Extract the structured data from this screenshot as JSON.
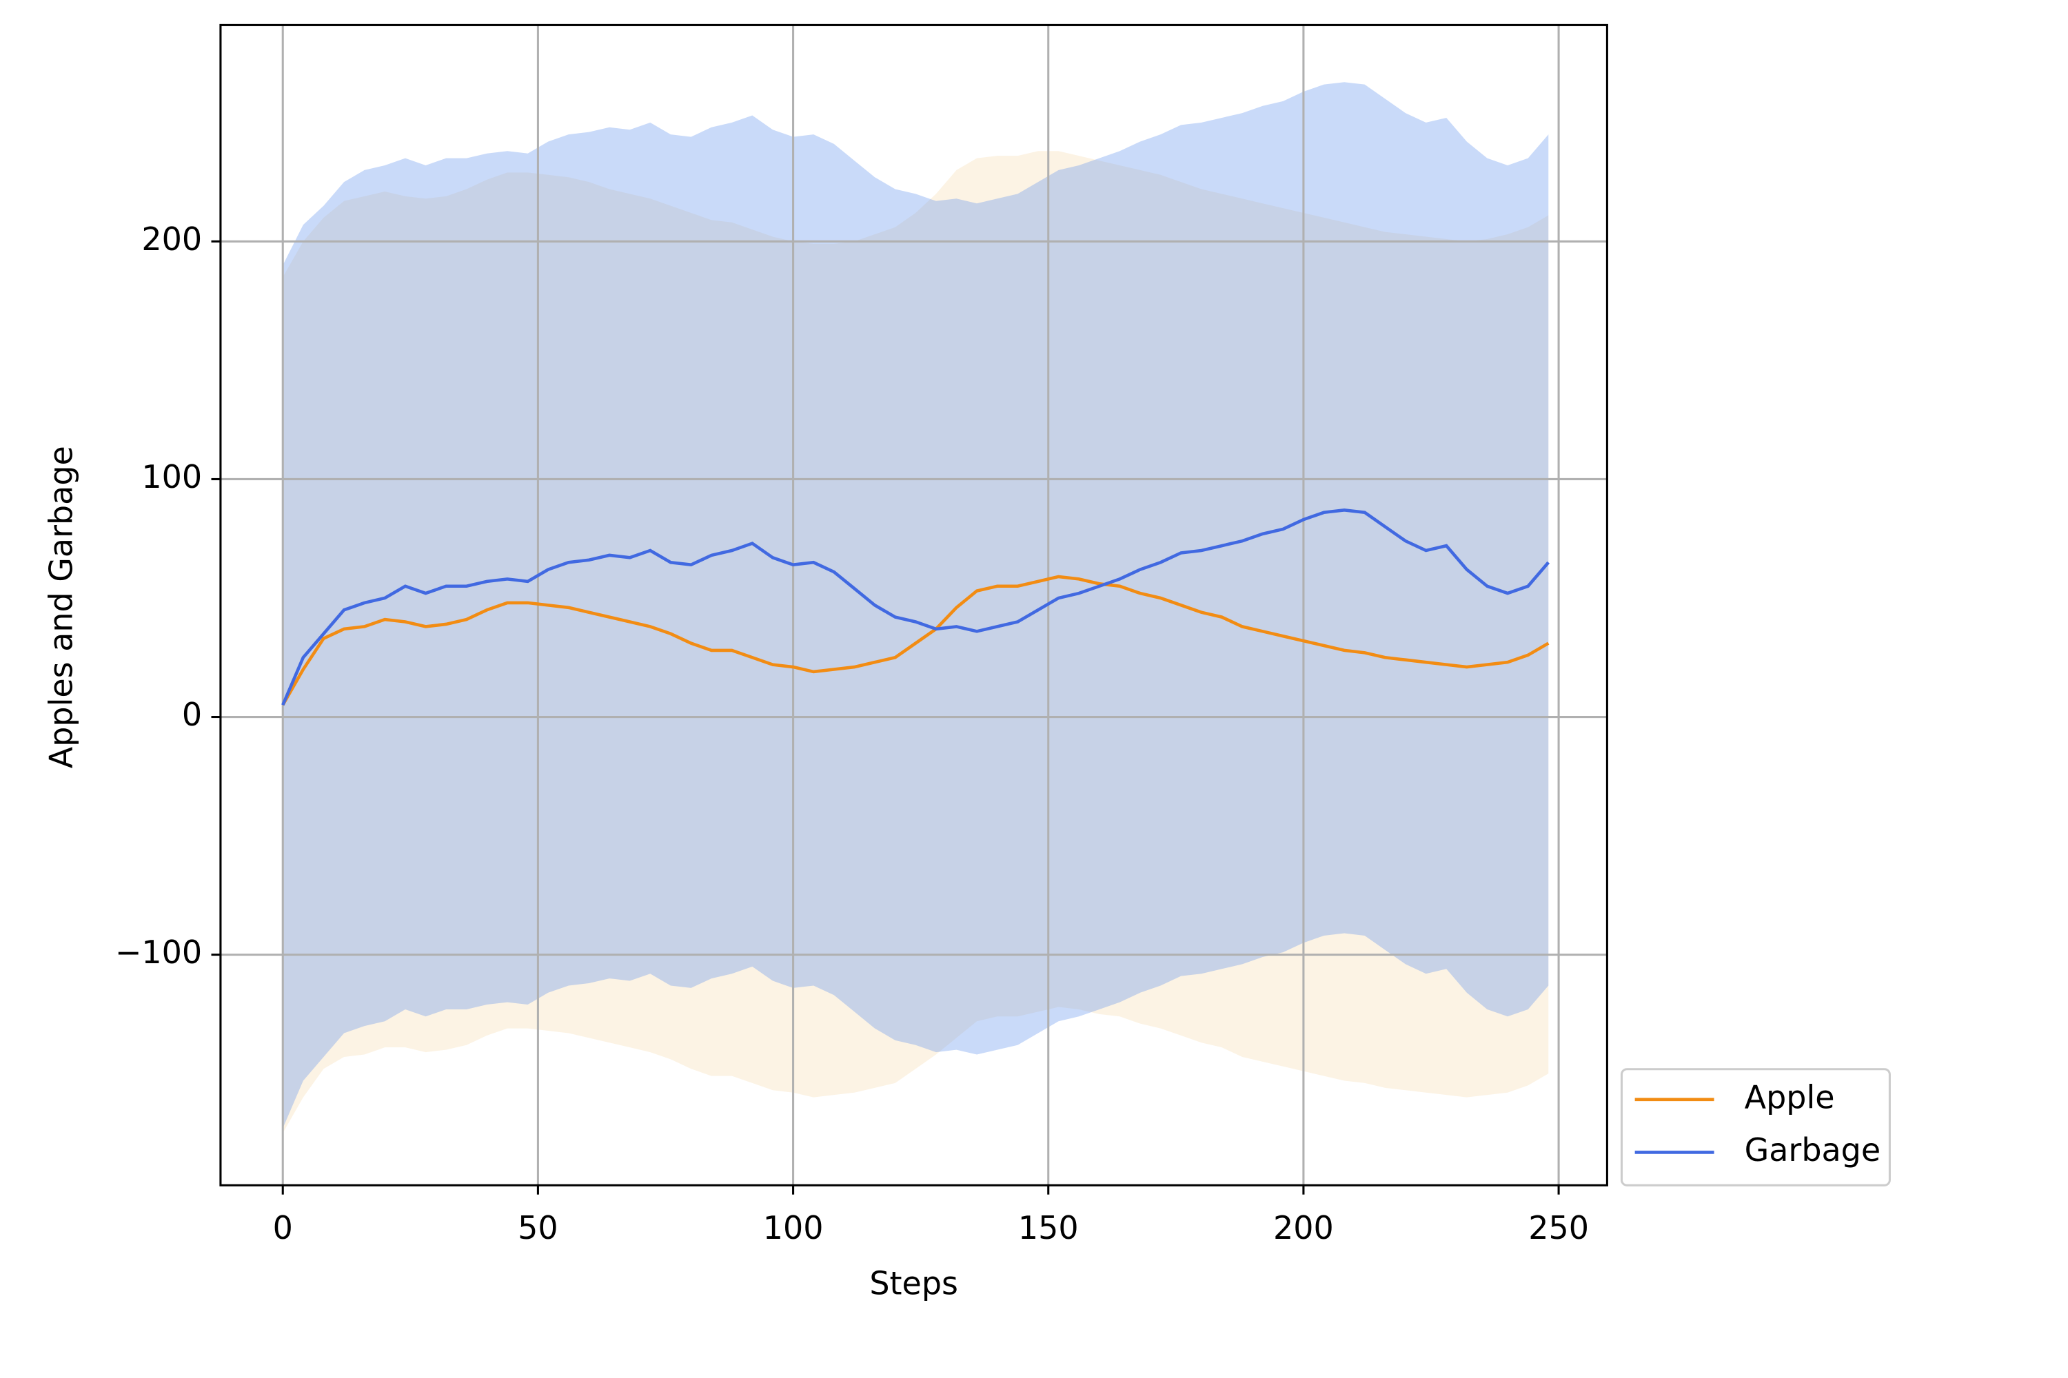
{
  "chart_data": {
    "type": "line",
    "xlabel": "Steps",
    "ylabel": "Apples and Garbage",
    "x": [
      0,
      4,
      8,
      12,
      16,
      20,
      24,
      28,
      32,
      36,
      40,
      44,
      48,
      52,
      56,
      60,
      64,
      68,
      72,
      76,
      80,
      84,
      88,
      92,
      96,
      100,
      104,
      108,
      112,
      116,
      120,
      124,
      128,
      132,
      136,
      140,
      144,
      148,
      152,
      156,
      160,
      164,
      168,
      172,
      176,
      180,
      184,
      188,
      192,
      196,
      200,
      204,
      208,
      212,
      216,
      220,
      224,
      228,
      232,
      236,
      240,
      244,
      248
    ],
    "xlim": [
      -12.2,
      259.5
    ],
    "ylim": [
      -197,
      291
    ],
    "xticks": [
      0,
      50,
      100,
      150,
      200,
      250
    ],
    "yticks": [
      {
        "value": -100,
        "label": "−100"
      },
      0,
      100,
      200
    ],
    "grid": true,
    "legend": "outside lower right",
    "band_opacity": 0.35,
    "series": [
      {
        "name": "Apple",
        "color": "#f28c13",
        "band_color": "#f5deb3",
        "values": [
          5,
          20,
          33,
          37,
          38,
          41,
          40,
          38,
          39,
          41,
          45,
          48,
          48,
          47,
          46,
          44,
          42,
          40,
          38,
          35,
          31,
          28,
          28,
          25,
          22,
          21,
          19,
          20,
          21,
          23,
          25,
          31,
          37,
          46,
          53,
          55,
          55,
          57,
          59,
          58,
          56,
          55,
          52,
          50,
          47,
          44,
          42,
          38,
          36,
          34,
          32,
          30,
          28,
          27,
          25,
          24,
          23,
          22,
          21,
          22,
          23,
          26,
          31
        ],
        "upper": [
          185,
          200,
          210,
          217,
          219,
          221,
          219,
          218,
          219,
          222,
          226,
          229,
          229,
          228,
          227,
          225,
          222,
          220,
          218,
          215,
          212,
          209,
          208,
          205,
          202,
          200,
          199,
          199,
          200,
          203,
          206,
          212,
          220,
          230,
          235,
          236,
          236,
          238,
          238,
          236,
          234,
          232,
          230,
          228,
          225,
          222,
          220,
          218,
          216,
          214,
          212,
          210,
          208,
          206,
          204,
          203,
          202,
          201,
          200,
          201,
          203,
          206,
          211
        ],
        "lower": [
          -175,
          -160,
          -148,
          -143,
          -142,
          -139,
          -139,
          -141,
          -140,
          -138,
          -134,
          -131,
          -131,
          -132,
          -133,
          -135,
          -137,
          -139,
          -141,
          -144,
          -148,
          -151,
          -151,
          -154,
          -157,
          -158,
          -160,
          -159,
          -158,
          -156,
          -154,
          -148,
          -142,
          -135,
          -128,
          -126,
          -126,
          -124,
          -122,
          -123,
          -125,
          -126,
          -129,
          -131,
          -134,
          -137,
          -139,
          -143,
          -145,
          -147,
          -149,
          -151,
          -153,
          -154,
          -156,
          -157,
          -158,
          -159,
          -160,
          -159,
          -158,
          -155,
          -150
        ]
      },
      {
        "name": "Garbage",
        "color": "#4169e1",
        "band_color": "#6495ed",
        "values": [
          5,
          25,
          35,
          45,
          48,
          50,
          55,
          52,
          55,
          55,
          57,
          58,
          57,
          62,
          65,
          66,
          68,
          67,
          70,
          65,
          64,
          68,
          70,
          73,
          67,
          64,
          65,
          61,
          54,
          47,
          42,
          40,
          37,
          38,
          36,
          38,
          40,
          45,
          50,
          52,
          55,
          58,
          62,
          65,
          69,
          70,
          72,
          74,
          77,
          79,
          83,
          86,
          87,
          86,
          80,
          74,
          70,
          72,
          62,
          55,
          52,
          55,
          65
        ],
        "upper": [
          190,
          207,
          215,
          225,
          230,
          232,
          235,
          232,
          235,
          235,
          237,
          238,
          237,
          242,
          245,
          246,
          248,
          247,
          250,
          245,
          244,
          248,
          250,
          253,
          247,
          244,
          245,
          241,
          234,
          227,
          222,
          220,
          217,
          218,
          216,
          218,
          220,
          225,
          230,
          232,
          235,
          238,
          242,
          245,
          249,
          250,
          252,
          254,
          257,
          259,
          263,
          266,
          267,
          266,
          260,
          254,
          250,
          252,
          242,
          235,
          232,
          235,
          245
        ],
        "lower": [
          -173,
          -153,
          -143,
          -133,
          -130,
          -128,
          -123,
          -126,
          -123,
          -123,
          -121,
          -120,
          -121,
          -116,
          -113,
          -112,
          -110,
          -111,
          -108,
          -113,
          -114,
          -110,
          -108,
          -105,
          -111,
          -114,
          -113,
          -117,
          -124,
          -131,
          -136,
          -138,
          -141,
          -140,
          -142,
          -140,
          -138,
          -133,
          -128,
          -126,
          -123,
          -120,
          -116,
          -113,
          -109,
          -108,
          -106,
          -104,
          -101,
          -99,
          -95,
          -92,
          -91,
          -92,
          -98,
          -104,
          -108,
          -106,
          -116,
          -123,
          -126,
          -123,
          -113
        ]
      }
    ]
  }
}
